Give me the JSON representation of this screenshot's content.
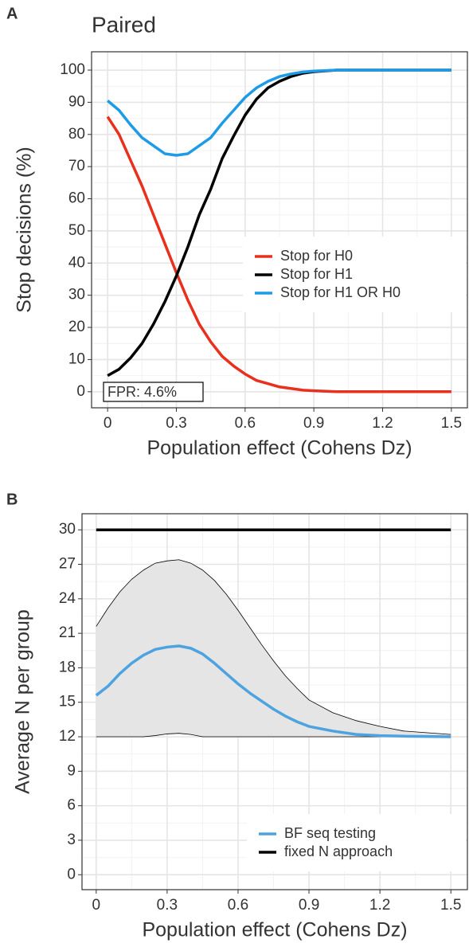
{
  "chart_data": [
    {
      "type": "line",
      "panel": "A",
      "title": "Paired",
      "x_label": "Population effect (Cohens Dz)",
      "y_label": "Stop decisions (%)",
      "x": [
        0,
        0.05,
        0.1,
        0.15,
        0.2,
        0.25,
        0.3,
        0.35,
        0.4,
        0.45,
        0.5,
        0.55,
        0.6,
        0.65,
        0.7,
        0.75,
        0.8,
        0.85,
        0.9,
        1.0,
        1.5
      ],
      "series": [
        {
          "name": "Stop for H0",
          "color": "#e8301c",
          "values": [
            85.5,
            80,
            72,
            64,
            55,
            46,
            37,
            28.5,
            21,
            15.5,
            11,
            8,
            5.5,
            3.5,
            2.5,
            1.5,
            1,
            0.5,
            0.3,
            0,
            0
          ]
        },
        {
          "name": "Stop for H1",
          "color": "#000000",
          "values": [
            5,
            7,
            10.5,
            15,
            21,
            28,
            36,
            45,
            55,
            63,
            72.5,
            79.5,
            86,
            91,
            94.5,
            96.5,
            98,
            99,
            99.5,
            100,
            100
          ]
        },
        {
          "name": "Stop for H1 OR H0",
          "color": "#1e9be6",
          "values": [
            90.5,
            87.5,
            83,
            79,
            76.5,
            74,
            73.5,
            74,
            76.5,
            79,
            83.5,
            87.5,
            91.5,
            94.5,
            96.5,
            98,
            98.8,
            99.4,
            99.7,
            100,
            100
          ]
        }
      ],
      "annotation": "FPR: 4.6%",
      "xlim": [
        -0.07,
        1.57
      ],
      "xticks": [
        0,
        0.3,
        0.6,
        0.9,
        1.2,
        1.5
      ],
      "ylim": [
        -5,
        105.7
      ],
      "yticks": [
        0,
        10,
        20,
        30,
        40,
        50,
        60,
        70,
        80,
        90,
        100
      ],
      "grid": true,
      "legend": "right"
    },
    {
      "type": "line",
      "panel": "B",
      "x_label": "Population effect (Cohens Dz)",
      "y_label": "Average N per group",
      "band": {
        "color": "#e5e5e5",
        "x": [
          0,
          0.05,
          0.1,
          0.15,
          0.2,
          0.25,
          0.3,
          0.35,
          0.4,
          0.45,
          0.5,
          0.55,
          0.6,
          0.65,
          0.7,
          0.75,
          0.8,
          0.85,
          0.9,
          1.0,
          1.1,
          1.2,
          1.3,
          1.5
        ],
        "upper": [
          21.6,
          23.2,
          24.6,
          25.7,
          26.5,
          27.1,
          27.3,
          27.4,
          27.1,
          26.5,
          25.6,
          24.4,
          23,
          21.5,
          20,
          18.6,
          17.3,
          16.2,
          15.2,
          14.1,
          13.4,
          12.9,
          12.5,
          12.2
        ],
        "lower": [
          12,
          12,
          12,
          12,
          12,
          12.1,
          12.25,
          12.3,
          12.2,
          12,
          12,
          12,
          12,
          12,
          12,
          12,
          12,
          12,
          12,
          12,
          12,
          12,
          12,
          12
        ]
      },
      "series": [
        {
          "name": "BF seq testing",
          "color": "#4da3e0",
          "x": [
            0,
            0.05,
            0.1,
            0.15,
            0.2,
            0.25,
            0.3,
            0.35,
            0.4,
            0.45,
            0.5,
            0.55,
            0.6,
            0.65,
            0.7,
            0.75,
            0.8,
            0.85,
            0.9,
            1.0,
            1.1,
            1.2,
            1.3,
            1.5
          ],
          "values": [
            15.6,
            16.4,
            17.5,
            18.4,
            19.1,
            19.6,
            19.8,
            19.9,
            19.7,
            19.2,
            18.4,
            17.5,
            16.6,
            15.8,
            15.1,
            14.4,
            13.8,
            13.3,
            12.9,
            12.5,
            12.2,
            12.1,
            12.05,
            12
          ]
        },
        {
          "name": "fixed N approach",
          "color": "#000000",
          "x": [
            0,
            1.5
          ],
          "values": [
            30,
            30
          ]
        }
      ],
      "xlim": [
        -0.06,
        1.57
      ],
      "xticks": [
        0,
        0.3,
        0.6,
        0.9,
        1.2,
        1.5
      ],
      "ylim": [
        -1.3,
        31.4
      ],
      "yticks": [
        0,
        3,
        6,
        9,
        12,
        15,
        18,
        21,
        24,
        27,
        30
      ],
      "grid": true,
      "legend": "bottom-right"
    }
  ]
}
